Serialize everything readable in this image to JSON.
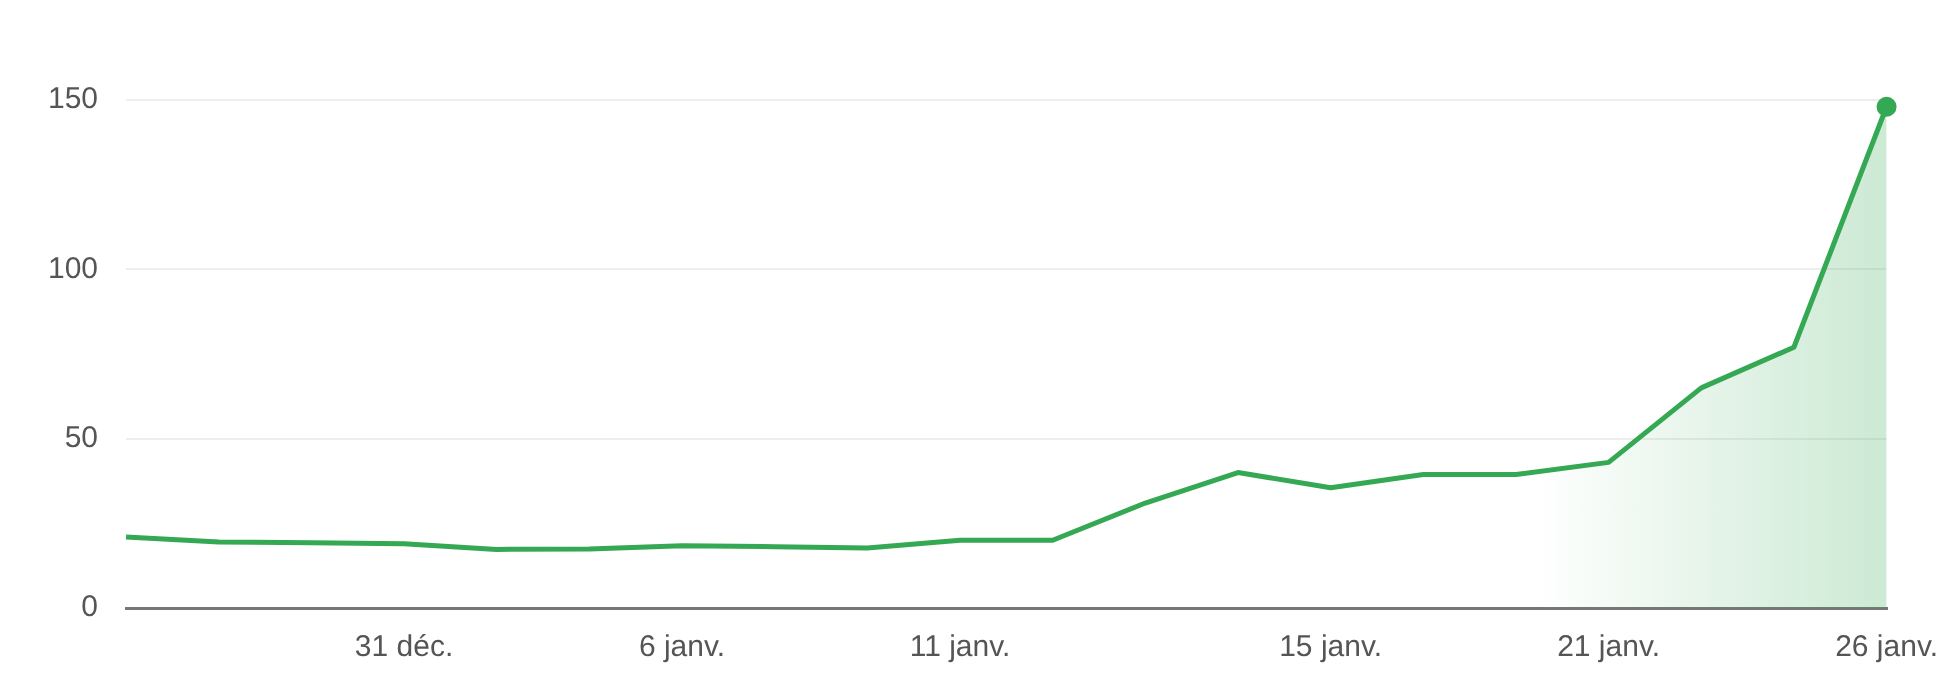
{
  "chart_data": {
    "type": "area",
    "categories": [
      null,
      null,
      null,
      "31 déc.",
      null,
      null,
      "6 janv.",
      null,
      null,
      "11 janv.",
      null,
      null,
      null,
      "15 janv.",
      null,
      null,
      "21 janv.",
      null,
      null,
      "26 janv."
    ],
    "series": [
      {
        "color": "#34a853",
        "values": [
          21,
          19.5,
          19.3,
          19,
          17.3,
          17.4,
          18.4,
          18.1,
          17.7,
          20,
          20,
          31,
          40,
          35.5,
          39.4,
          39.4,
          43,
          65,
          77,
          148
        ]
      }
    ],
    "ylim": [
      0,
      150
    ],
    "yticks": [
      0,
      50,
      100,
      150
    ],
    "grid": "y",
    "legend": false
  }
}
